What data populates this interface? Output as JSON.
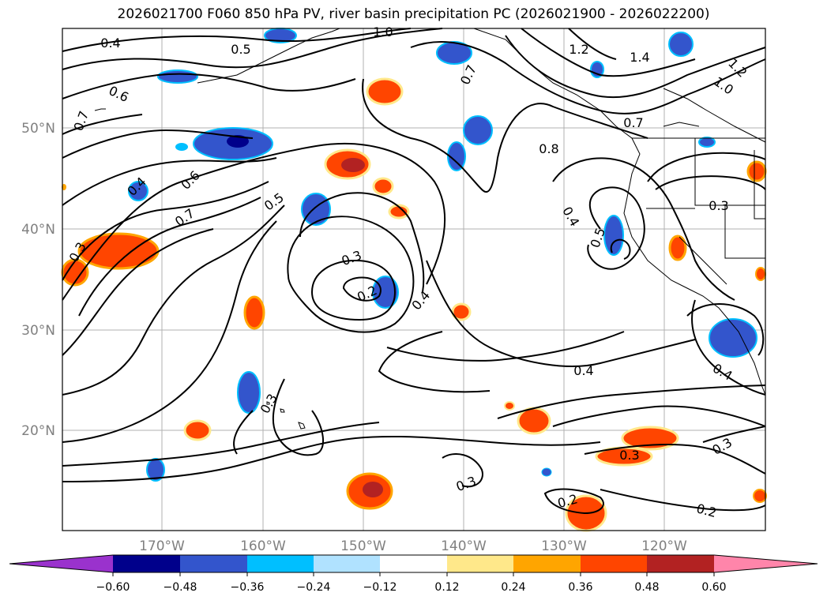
{
  "title": "2026021700 F060 850 hPa PV, river basin precipitation PC (2026021900 - 2026022200)",
  "map": {
    "lat_labels": [
      "50°N",
      "40°N",
      "30°N",
      "20°N"
    ],
    "lon_labels": [
      "170°W",
      "160°W",
      "150°W",
      "140°W",
      "130°W",
      "120°W"
    ],
    "contour_labels": [
      "0.4",
      "0.5",
      "1.0",
      "0.6",
      "0.7",
      "0.4",
      "0.6",
      "0.7",
      "0.3",
      "0.5",
      "0.3",
      "0.2",
      "0.4",
      "0.7",
      "1.2",
      "1.4",
      "1.2",
      "1.0",
      "0.7",
      "0.8",
      "0.4",
      "0.5",
      "0.3",
      "0.4",
      "0.4",
      "0.3",
      "0.3",
      "0.3",
      "0.2",
      "0.2",
      "0.3"
    ],
    "colors": {
      "land_line": "#000000",
      "grid": "#b0b0b0",
      "pv_contour": "#000000"
    }
  },
  "colorbar": {
    "tick_labels": [
      "−0.60",
      "−0.48",
      "−0.36",
      "−0.24",
      "−0.12",
      "0.12",
      "0.24",
      "0.36",
      "0.48",
      "0.60"
    ],
    "colors": [
      "#9a32cd",
      "#00008b",
      "#3355cc",
      "#00bfff",
      "#b0e2ff",
      "#ffffff",
      "#ffe88a",
      "#ffa500",
      "#ff4500",
      "#b22222",
      "#ff85aa"
    ]
  }
}
